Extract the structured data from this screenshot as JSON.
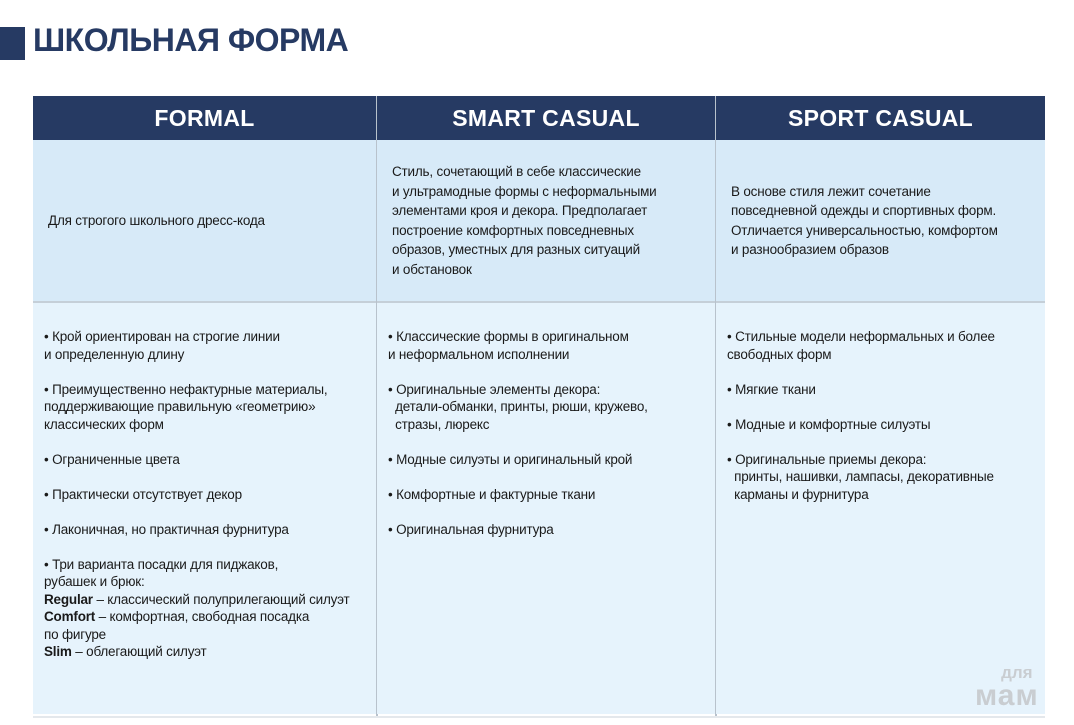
{
  "title": "ШКОЛЬНАЯ ФОРМА",
  "colors": {
    "navy": "#263a63",
    "description_bg": "#d7eaf8",
    "features_bg": "#e6f3fc"
  },
  "columns": [
    {
      "header": "FORMAL",
      "description": [
        "Для строгого школьного дресс-кода"
      ],
      "features": [
        {
          "lines": [
            "• Крой ориентирован на строгие линии",
            "и определенную длину"
          ]
        },
        {
          "lines": [
            "• Преимущественно нефактурные материалы,",
            "поддерживающие правильную «геометрию»",
            "классических форм"
          ]
        },
        {
          "lines": [
            "• Ограниченные цвета"
          ]
        },
        {
          "lines": [
            "• Практически отсутствует декор"
          ]
        },
        {
          "lines": [
            "• Лаконичная, но практичная фурнитура"
          ]
        },
        {
          "lines": [
            "• Три варианта посадки для пиджаков,",
            "рубашек и брюк:"
          ],
          "fits": [
            {
              "term": "Regular",
              "desc": [
                "– классический полуприлегающий силуэт"
              ]
            },
            {
              "term": "Comfort",
              "desc": [
                "– комфортная, свободная посадка",
                "по фигуре"
              ]
            },
            {
              "term": "Slim",
              "desc": [
                "– облегающий силуэт"
              ]
            }
          ]
        }
      ]
    },
    {
      "header": "SMART CASUAL",
      "description": [
        "Стиль, сочетающий в себе классические",
        "и ультрамодные формы с неформальными",
        "элементами кроя и декора. Предполагает",
        "построение комфортных повседневных",
        "образов, уместных для разных ситуаций",
        "и обстановок"
      ],
      "features": [
        {
          "lines": [
            "• Классические формы в оригинальном",
            "и неформальном исполнении"
          ]
        },
        {
          "lines": [
            "• Оригинальные элементы декора:",
            "  детали-обманки, принты, рюши, кружево,",
            "  стразы, люрекс"
          ]
        },
        {
          "lines": [
            "• Модные силуэты и оригинальный крой"
          ]
        },
        {
          "lines": [
            "• Комфортные и фактурные ткани"
          ]
        },
        {
          "lines": [
            "• Оригинальная фурнитура"
          ]
        }
      ]
    },
    {
      "header": "SPORT CASUAL",
      "description": [
        "В основе стиля лежит сочетание",
        "повседневной одежды и спортивных форм.",
        "Отличается универсальностью, комфортом",
        "и разнообразием образов"
      ],
      "features": [
        {
          "lines": [
            "• Стильные модели неформальных и более",
            "свободных форм"
          ]
        },
        {
          "lines": [
            "• Мягкие ткани"
          ]
        },
        {
          "lines": [
            "• Модные и комфортные силуэты"
          ]
        },
        {
          "lines": [
            "• Оригинальные приемы декора:",
            "  принты, нашивки, лампасы, декоративные",
            "  карманы и фурнитура"
          ]
        }
      ]
    }
  ],
  "watermark": {
    "top": "для",
    "bottom": "мам"
  }
}
